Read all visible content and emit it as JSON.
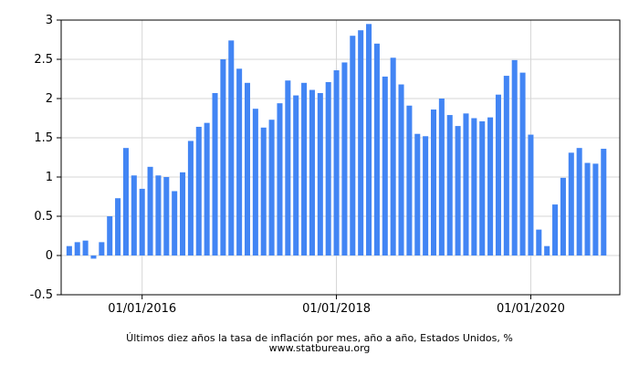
{
  "chart_data": {
    "type": "bar",
    "title": "Últimos diez años la tasa de inflación por mes, año a año, Estados Unidos, %",
    "source": "www.statbureau.org",
    "xlabel": "",
    "ylabel": "",
    "x_start": "2015-04",
    "x_range": [
      "2015-03",
      "2020-12"
    ],
    "x_ticks": [
      "01/01/2016",
      "01/01/2018",
      "01/01/2020"
    ],
    "ylim": [
      -0.5,
      3
    ],
    "y_ticks": [
      "3",
      "2.5",
      "2",
      "1.5",
      "1",
      "0.5",
      "0",
      "-0.5"
    ],
    "grid": true,
    "legend": "none",
    "bar_color": "#4285f4",
    "values": [
      0.12,
      0.17,
      0.19,
      -0.04,
      0.17,
      0.5,
      0.73,
      1.37,
      1.02,
      0.85,
      1.13,
      1.02,
      1.0,
      0.82,
      1.06,
      1.46,
      1.64,
      1.69,
      2.07,
      2.5,
      2.74,
      2.38,
      2.2,
      1.87,
      1.63,
      1.73,
      1.94,
      2.23,
      2.04,
      2.2,
      2.11,
      2.07,
      2.21,
      2.36,
      2.46,
      2.8,
      2.87,
      2.95,
      2.7,
      2.28,
      2.52,
      2.18,
      1.91,
      1.55,
      1.52,
      1.86,
      2.0,
      1.79,
      1.65,
      1.81,
      1.75,
      1.71,
      1.76,
      2.05,
      2.29,
      2.49,
      2.33,
      1.54,
      0.33,
      0.12,
      0.65,
      0.99,
      1.31,
      1.37,
      1.18,
      1.17,
      1.36
    ]
  }
}
